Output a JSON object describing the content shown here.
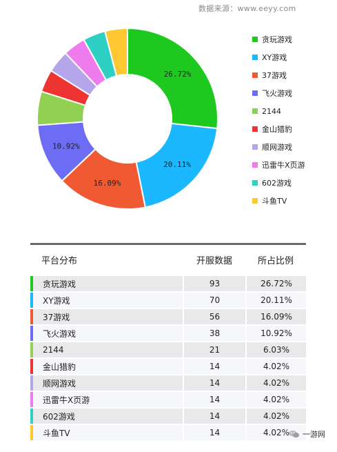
{
  "source": "数据来源：www.eeyy.com",
  "chart_data": {
    "type": "pie",
    "categories": [
      "贪玩游戏",
      "XY游戏",
      "37游戏",
      "飞火游戏",
      "2144",
      "金山猎豹",
      "顺网游戏",
      "迅雷牛X页游",
      "602游戏",
      "斗鱼TV"
    ],
    "values": [
      93,
      70,
      56,
      38,
      21,
      14,
      14,
      14,
      14,
      14
    ],
    "percentages": [
      "26.72%",
      "20.11%",
      "16.09%",
      "10.92%",
      "6.03%",
      "4.02%",
      "4.02%",
      "4.02%",
      "4.02%",
      "4.02%"
    ],
    "slice_labels": [
      "26.72%",
      "20.11%",
      "16.09%",
      "10.92%",
      "",
      "",
      "",
      "",
      "",
      ""
    ],
    "colors": [
      "#1ec81e",
      "#1bb8ff",
      "#f05a33",
      "#6c6cf5",
      "#91d050",
      "#ee3333",
      "#b5a6ec",
      "#ee7cee",
      "#2ed0c4",
      "#ffc832"
    ],
    "donut": true,
    "legend_position": "right"
  },
  "table": {
    "headers": [
      "平台分布",
      "开服数据",
      "所占比例"
    ],
    "rows": [
      {
        "name": "贪玩游戏",
        "count": "93",
        "ratio": "26.72%"
      },
      {
        "name": "XY游戏",
        "count": "70",
        "ratio": "20.11%"
      },
      {
        "name": "37游戏",
        "count": "56",
        "ratio": "16.09%"
      },
      {
        "name": "飞火游戏",
        "count": "38",
        "ratio": "10.92%"
      },
      {
        "name": "2144",
        "count": "21",
        "ratio": "6.03%"
      },
      {
        "name": "金山猎豹",
        "count": "14",
        "ratio": "4.02%"
      },
      {
        "name": "顺网游戏",
        "count": "14",
        "ratio": "4.02%"
      },
      {
        "name": "迅雷牛X页游",
        "count": "14",
        "ratio": "4.02%"
      },
      {
        "name": "602游戏",
        "count": "14",
        "ratio": "4.02%"
      },
      {
        "name": "斗鱼TV",
        "count": "14",
        "ratio": "4.02%"
      }
    ]
  },
  "watermark": "一游网",
  "wechat_icon": "wechat-icon"
}
